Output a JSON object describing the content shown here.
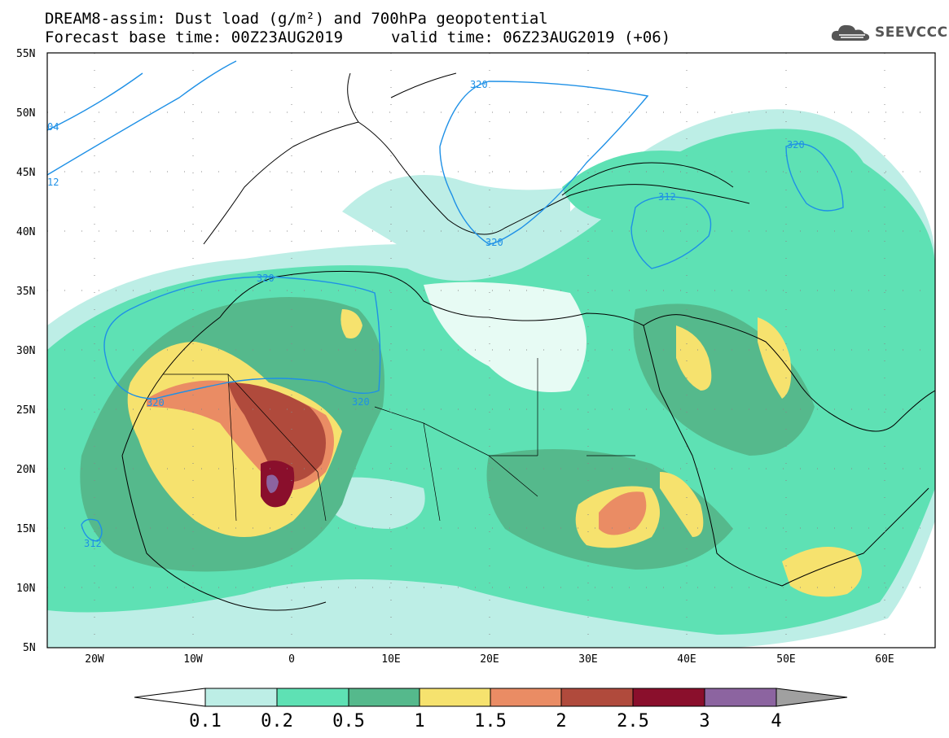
{
  "header": {
    "line1": "DREAM8-assim: Dust load (g/m²) and 700hPa geopotential",
    "line2a": "Forecast base time: 00Z23AUG2019",
    "line2b": "valid time: 06Z23AUG2019 (+06)",
    "logo_text": "SEEVCCC",
    "logo_icon": "cloud-logo-icon"
  },
  "map": {
    "lon_range": [
      -25,
      65
    ],
    "lat_range": [
      5,
      55
    ],
    "lat_ticks": [
      "55N",
      "50N",
      "45N",
      "40N",
      "35N",
      "30N",
      "25N",
      "20N",
      "15N",
      "10N",
      "5N"
    ],
    "lon_ticks": [
      "20W",
      "10W",
      "0",
      "10E",
      "20E",
      "30E",
      "40E",
      "50E",
      "60E"
    ],
    "contour_labels": [
      "320",
      "320",
      "320",
      "312",
      "320",
      "320",
      "312",
      "320",
      "04",
      "12"
    ],
    "colors": {
      "contour": "#1e90e6",
      "border": "#000000"
    }
  },
  "colorbar": {
    "labels": [
      "0.1",
      "0.2",
      "0.5",
      "1",
      "1.5",
      "2",
      "2.5",
      "3",
      "4"
    ],
    "colors": [
      "#ffffff",
      "#bdeee6",
      "#5ee1b4",
      "#55b98c",
      "#f6e26e",
      "#ea8c64",
      "#b04a3c",
      "#8a0f2c",
      "#8c64a0",
      "#a0a0a0"
    ]
  }
}
